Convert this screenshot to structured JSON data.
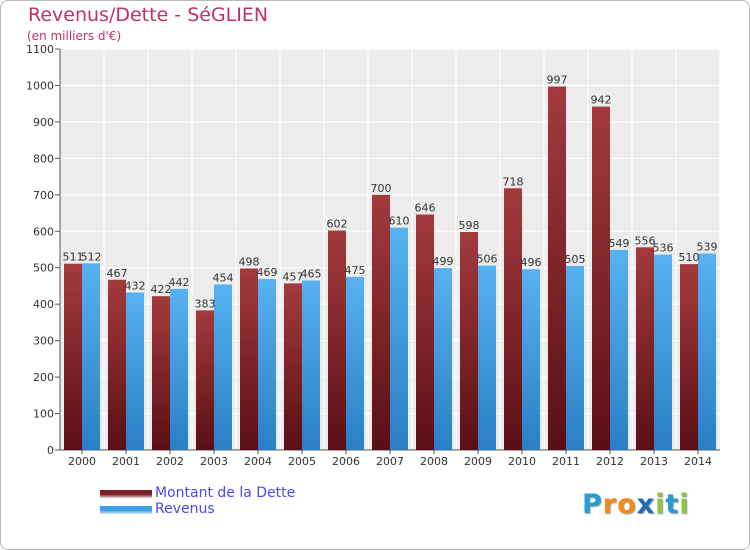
{
  "title": "Revenus/Dette - SéGLIEN",
  "subtitle": "(en milliers d'€)",
  "logo": {
    "letters": [
      "P",
      "r",
      "o",
      "x",
      "i",
      "t",
      "i"
    ],
    "colors": [
      "#2b9bd6",
      "#f08a1c",
      "#f08a1c",
      "#1e6bb8",
      "#8cc63f",
      "#2b9bd6",
      "#8cc63f"
    ]
  },
  "chart_data": {
    "type": "bar",
    "title": "Revenus/Dette - SéGLIEN",
    "subtitle": "(en milliers d'€)",
    "xlabel": "",
    "ylabel": "",
    "ylim": [
      0,
      1100
    ],
    "yticks": [
      0,
      100,
      200,
      300,
      400,
      500,
      600,
      700,
      800,
      900,
      1000,
      1100
    ],
    "grid": true,
    "legend_position": "bottom-left",
    "categories": [
      "2000",
      "2001",
      "2002",
      "2003",
      "2004",
      "2005",
      "2006",
      "2007",
      "2008",
      "2009",
      "2010",
      "2011",
      "2012",
      "2013",
      "2014"
    ],
    "series": [
      {
        "name": "Montant de la Dette",
        "color": "#7a1f24",
        "values": [
          511,
          467,
          422,
          383,
          498,
          457,
          602,
          700,
          646,
          598,
          718,
          997,
          942,
          556,
          510
        ]
      },
      {
        "name": "Revenus",
        "color": "#3d9ee3",
        "values": [
          512,
          432,
          442,
          454,
          469,
          465,
          475,
          610,
          499,
          506,
          496,
          505,
          549,
          536,
          539
        ]
      }
    ]
  }
}
